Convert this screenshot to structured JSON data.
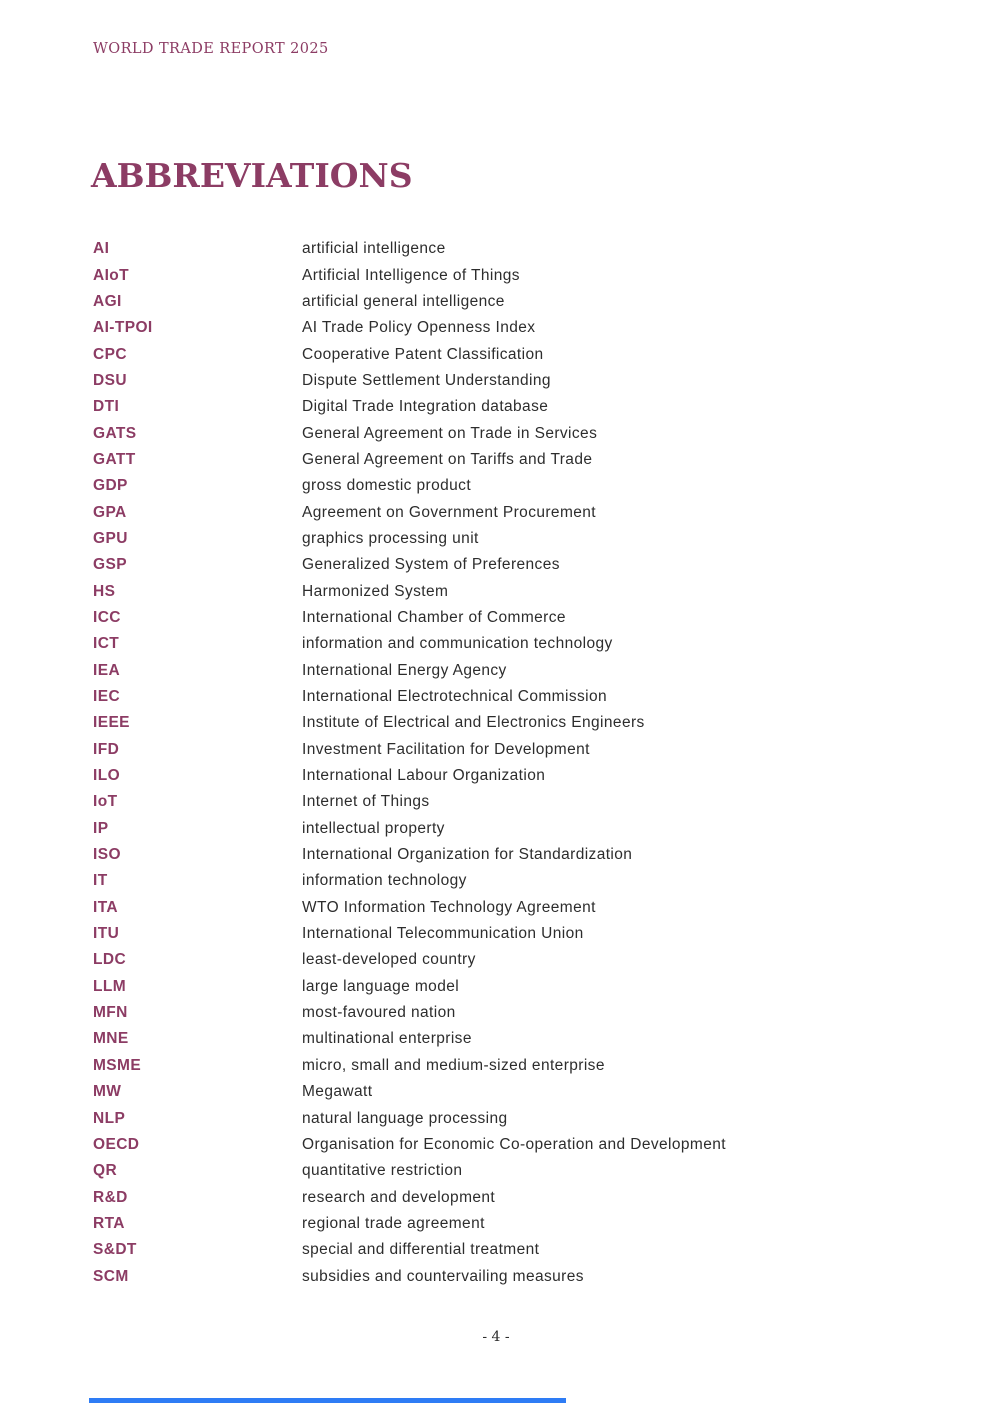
{
  "page": {
    "running_header": "WORLD TRADE REPORT 2025",
    "title": "ABBREVIATIONS",
    "page_number": "- 4 -"
  },
  "colors": {
    "accent": "#8c3c64",
    "body_text": "#2d2d2d",
    "selection_bar_blue": "#2e7cf5"
  },
  "abbreviations": [
    {
      "abbr": "AI",
      "definition": "artificial intelligence"
    },
    {
      "abbr": "AIoT",
      "definition": "Artificial Intelligence of Things"
    },
    {
      "abbr": "AGI",
      "definition": "artificial general intelligence"
    },
    {
      "abbr": "AI-TPOI",
      "definition": "AI Trade Policy Openness Index"
    },
    {
      "abbr": "CPC",
      "definition": "Cooperative Patent Classification"
    },
    {
      "abbr": "DSU",
      "definition": "Dispute Settlement Understanding"
    },
    {
      "abbr": "DTI",
      "definition": "Digital Trade Integration database"
    },
    {
      "abbr": "GATS",
      "definition": "General Agreement on Trade in Services"
    },
    {
      "abbr": "GATT",
      "definition": "General Agreement on Tariffs and Trade"
    },
    {
      "abbr": "GDP",
      "definition": "gross domestic product"
    },
    {
      "abbr": "GPA",
      "definition": "Agreement on Government Procurement"
    },
    {
      "abbr": "GPU",
      "definition": "graphics processing unit"
    },
    {
      "abbr": "GSP",
      "definition": "Generalized System of Preferences"
    },
    {
      "abbr": "HS",
      "definition": "Harmonized System"
    },
    {
      "abbr": "ICC",
      "definition": "International Chamber of Commerce"
    },
    {
      "abbr": "ICT",
      "definition": "information and communication technology"
    },
    {
      "abbr": "IEA",
      "definition": "International Energy Agency"
    },
    {
      "abbr": "IEC",
      "definition": "International Electrotechnical Commission"
    },
    {
      "abbr": "IEEE",
      "definition": "Institute of Electrical and Electronics Engineers"
    },
    {
      "abbr": "IFD",
      "definition": "Investment Facilitation for Development"
    },
    {
      "abbr": "ILO",
      "definition": "International Labour Organization"
    },
    {
      "abbr": "IoT",
      "definition": "Internet of Things"
    },
    {
      "abbr": "IP",
      "definition": "intellectual property"
    },
    {
      "abbr": "ISO",
      "definition": "International Organization for Standardization"
    },
    {
      "abbr": "IT",
      "definition": "information technology"
    },
    {
      "abbr": "ITA",
      "definition": "WTO Information Technology Agreement"
    },
    {
      "abbr": "ITU",
      "definition": "International Telecommunication Union"
    },
    {
      "abbr": "LDC",
      "definition": "least-developed country"
    },
    {
      "abbr": "LLM",
      "definition": "large language model"
    },
    {
      "abbr": "MFN",
      "definition": "most-favoured nation"
    },
    {
      "abbr": "MNE",
      "definition": "multinational enterprise"
    },
    {
      "abbr": "MSME",
      "definition": "micro, small and medium-sized enterprise"
    },
    {
      "abbr": "MW",
      "definition": "Megawatt"
    },
    {
      "abbr": "NLP",
      "definition": "natural language processing"
    },
    {
      "abbr": "OECD",
      "definition": "Organisation for Economic Co-operation and Development"
    },
    {
      "abbr": "QR",
      "definition": "quantitative restriction"
    },
    {
      "abbr": "R&D",
      "definition": "research and development"
    },
    {
      "abbr": "RTA",
      "definition": "regional trade agreement"
    },
    {
      "abbr": "S&DT",
      "definition": "special and differential treatment"
    },
    {
      "abbr": "SCM",
      "definition": "subsidies and countervailing measures"
    }
  ]
}
